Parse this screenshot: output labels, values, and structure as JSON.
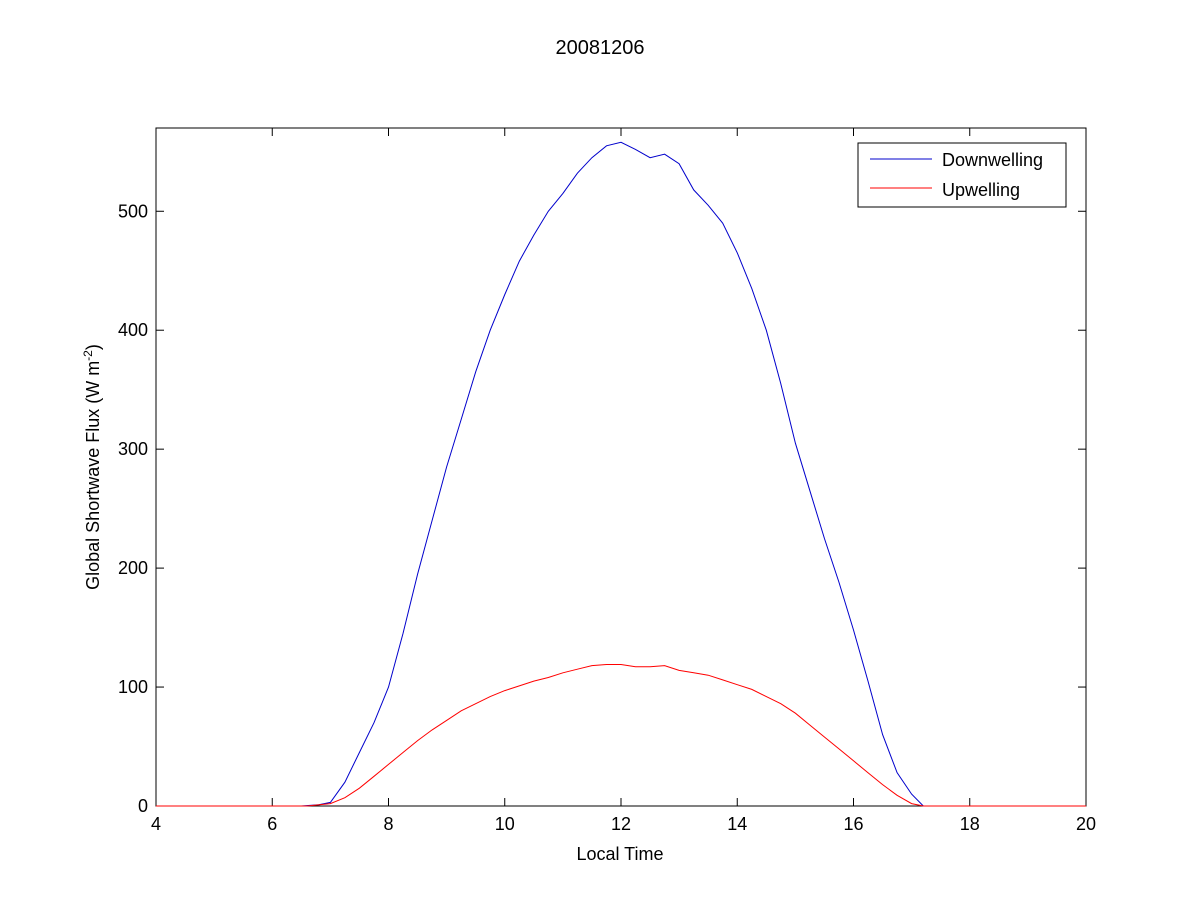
{
  "chart_data": {
    "type": "line",
    "title": "20081206",
    "xlabel": "Local Time",
    "ylabel": "Global Shortwave Flux (W m",
    "ylabel_sup": "-2",
    "ylabel_end": ")",
    "xlim": [
      4,
      20
    ],
    "ylim": [
      0,
      570
    ],
    "xticks": [
      4,
      6,
      8,
      10,
      12,
      14,
      16,
      18,
      20
    ],
    "yticks": [
      0,
      100,
      200,
      300,
      400,
      500
    ],
    "grid": false,
    "legend_position": "top-right",
    "series": [
      {
        "name": "Downwelling",
        "color": "#0000cc",
        "x": [
          4,
          6.5,
          6.8,
          7.0,
          7.25,
          7.5,
          7.75,
          8.0,
          8.25,
          8.5,
          8.75,
          9.0,
          9.25,
          9.5,
          9.75,
          10.0,
          10.25,
          10.5,
          10.75,
          11.0,
          11.25,
          11.5,
          11.75,
          12.0,
          12.25,
          12.5,
          12.75,
          13.0,
          13.25,
          13.5,
          13.75,
          14.0,
          14.25,
          14.5,
          14.75,
          15.0,
          15.25,
          15.5,
          15.75,
          16.0,
          16.25,
          16.5,
          16.75,
          17.0,
          17.2,
          20
        ],
        "y": [
          0,
          0,
          1,
          3,
          20,
          45,
          70,
          100,
          145,
          195,
          240,
          285,
          325,
          365,
          400,
          430,
          458,
          480,
          500,
          515,
          532,
          545,
          555,
          558,
          552,
          545,
          548,
          540,
          518,
          505,
          490,
          465,
          435,
          400,
          355,
          305,
          265,
          225,
          188,
          148,
          105,
          60,
          28,
          10,
          0,
          0
        ]
      },
      {
        "name": "Upwelling",
        "color": "#ff0000",
        "x": [
          4,
          6.6,
          7.0,
          7.25,
          7.5,
          7.75,
          8.0,
          8.25,
          8.5,
          8.75,
          9.0,
          9.25,
          9.5,
          9.75,
          10.0,
          10.25,
          10.5,
          10.75,
          11.0,
          11.25,
          11.5,
          11.75,
          12.0,
          12.25,
          12.5,
          12.75,
          13.0,
          13.25,
          13.5,
          13.75,
          14.0,
          14.25,
          14.5,
          14.75,
          15.0,
          15.25,
          15.5,
          15.75,
          16.0,
          16.25,
          16.5,
          16.75,
          17.0,
          17.2,
          20
        ],
        "y": [
          0,
          0,
          2,
          7,
          15,
          25,
          35,
          45,
          55,
          64,
          72,
          80,
          86,
          92,
          97,
          101,
          105,
          108,
          112,
          115,
          118,
          119,
          119,
          117,
          117,
          118,
          114,
          112,
          110,
          106,
          102,
          98,
          92,
          86,
          78,
          68,
          58,
          48,
          38,
          28,
          18,
          9,
          2,
          0,
          0
        ]
      }
    ]
  }
}
